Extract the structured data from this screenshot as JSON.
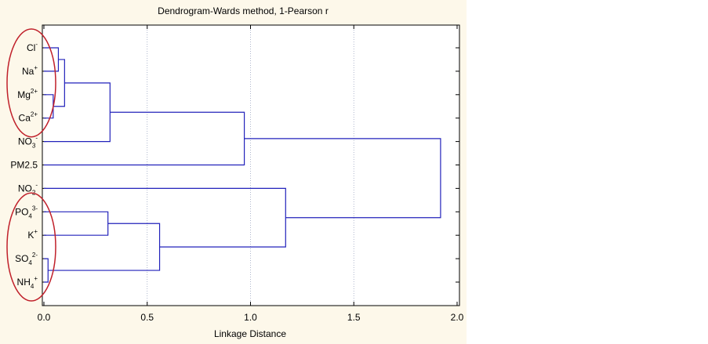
{
  "chart_data": {
    "type": "dendrogram",
    "title": "Dendrogram-Wards method, 1-Pearson r",
    "xlabel": "Linkage Distance",
    "ylabel": "",
    "xlim": [
      0.0,
      2.0
    ],
    "x_ticks": [
      "0.0",
      "0.5",
      "1.0",
      "1.5",
      "2.0"
    ],
    "grid": "vertical dotted",
    "leaves": [
      {
        "base": "Cl",
        "sub": "",
        "sup": "-"
      },
      {
        "base": "Na",
        "sub": "",
        "sup": "+"
      },
      {
        "base": "Mg",
        "sub": "",
        "sup": "2+"
      },
      {
        "base": "Ca",
        "sub": "",
        "sup": "2+"
      },
      {
        "base": "NO",
        "sub": "3",
        "sup": "-"
      },
      {
        "base": "PM2.5",
        "sub": "",
        "sup": ""
      },
      {
        "base": "NO",
        "sub": "2",
        "sup": "-"
      },
      {
        "base": "PO",
        "sub": "4",
        "sup": "3-"
      },
      {
        "base": "K",
        "sub": "",
        "sup": "+"
      },
      {
        "base": "SO",
        "sub": "4",
        "sup": "2-"
      },
      {
        "base": "NH",
        "sub": "4",
        "sup": "+"
      }
    ],
    "merges": [
      {
        "a": 0,
        "b": 1,
        "height": 0.07
      },
      {
        "a": 2,
        "b": 3,
        "height": 0.045
      },
      {
        "a": "m0",
        "b": "m1",
        "height": 0.1
      },
      {
        "a": "m2",
        "b": 4,
        "height": 0.32
      },
      {
        "a": "m3",
        "b": 5,
        "height": 0.97
      },
      {
        "a": 9,
        "b": 10,
        "height": 0.02
      },
      {
        "a": 7,
        "b": 8,
        "height": 0.31
      },
      {
        "a": "m6",
        "b": "m5",
        "height": 0.56
      },
      {
        "a": 6,
        "b": "m7",
        "height": 1.17
      },
      {
        "a": "m4",
        "b": "m8",
        "height": 1.92
      }
    ],
    "highlight_groups": [
      {
        "leaves": [
          0,
          1,
          2,
          3
        ],
        "color": "#c0202a"
      },
      {
        "leaves": [
          7,
          8,
          9,
          10
        ],
        "color": "#c0202a"
      }
    ],
    "colors": {
      "background_panel": "#fdf8ea",
      "plot_area": "#ffffff",
      "lines": "#2222bb",
      "axis": "#000000",
      "grid": "#9aa4c0"
    }
  }
}
